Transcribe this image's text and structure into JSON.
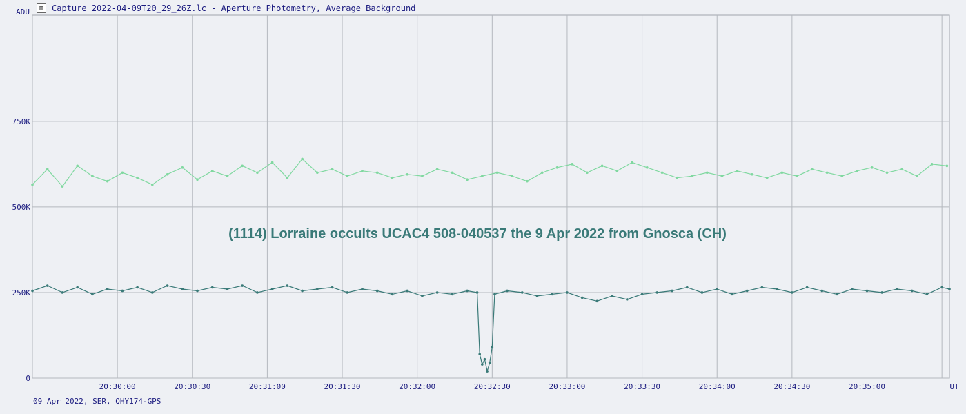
{
  "window": {
    "title": "Capture 2022-04-09T20_29_26Z.lc - Aperture Photometry, Average Background",
    "icon": "chart-icon"
  },
  "footer": {
    "text": "09 Apr 2022, SER, QHY174-GPS"
  },
  "chart_data": {
    "type": "line",
    "title": "(1114) Lorraine occults UCAC4 508-040537 the 9 Apr 2022 from Gnosca (CH)",
    "ylabel": "ADU",
    "xlabel": "UT",
    "ylim": [
      0,
      1060000
    ],
    "xlim": [
      "20:29:26",
      "20:35:33"
    ],
    "grid": true,
    "y_ticks": [
      {
        "value": 0,
        "label": "0"
      },
      {
        "value": 250000,
        "label": "250K"
      },
      {
        "value": 500000,
        "label": "500K"
      },
      {
        "value": 750000,
        "label": "750K"
      }
    ],
    "x_ticks": [
      {
        "value": "20:29:26",
        "label": ""
      },
      {
        "value": "20:30:00",
        "label": "20:30:00"
      },
      {
        "value": "20:30:30",
        "label": "20:30:30"
      },
      {
        "value": "20:31:00",
        "label": "20:31:00"
      },
      {
        "value": "20:31:30",
        "label": "20:31:30"
      },
      {
        "value": "20:32:00",
        "label": "20:32:00"
      },
      {
        "value": "20:32:30",
        "label": "20:32:30"
      },
      {
        "value": "20:33:00",
        "label": "20:33:00"
      },
      {
        "value": "20:33:30",
        "label": "20:33:30"
      },
      {
        "value": "20:34:00",
        "label": "20:34:00"
      },
      {
        "value": "20:34:30",
        "label": "20:34:30"
      },
      {
        "value": "20:35:00",
        "label": "20:35:00"
      },
      {
        "value": "20:35:30",
        "label": ""
      }
    ],
    "series": [
      {
        "color": "#80d8a0",
        "values_note": "",
        "points": [
          [
            "20:29:26",
            565000
          ],
          [
            "20:29:32",
            610000
          ],
          [
            "20:29:38",
            560000
          ],
          [
            "20:29:44",
            620000
          ],
          [
            "20:29:50",
            590000
          ],
          [
            "20:29:56",
            575000
          ],
          [
            "20:30:02",
            600000
          ],
          [
            "20:30:08",
            585000
          ],
          [
            "20:30:14",
            565000
          ],
          [
            "20:30:20",
            595000
          ],
          [
            "20:30:26",
            615000
          ],
          [
            "20:30:32",
            580000
          ],
          [
            "20:30:38",
            605000
          ],
          [
            "20:30:44",
            590000
          ],
          [
            "20:30:50",
            620000
          ],
          [
            "20:30:56",
            600000
          ],
          [
            "20:31:02",
            630000
          ],
          [
            "20:31:08",
            585000
          ],
          [
            "20:31:14",
            640000
          ],
          [
            "20:31:20",
            600000
          ],
          [
            "20:31:26",
            610000
          ],
          [
            "20:31:32",
            590000
          ],
          [
            "20:31:38",
            605000
          ],
          [
            "20:31:44",
            600000
          ],
          [
            "20:31:50",
            585000
          ],
          [
            "20:31:56",
            595000
          ],
          [
            "20:32:02",
            590000
          ],
          [
            "20:32:08",
            610000
          ],
          [
            "20:32:14",
            600000
          ],
          [
            "20:32:20",
            580000
          ],
          [
            "20:32:26",
            590000
          ],
          [
            "20:32:32",
            600000
          ],
          [
            "20:32:38",
            590000
          ],
          [
            "20:32:44",
            575000
          ],
          [
            "20:32:50",
            600000
          ],
          [
            "20:32:56",
            615000
          ],
          [
            "20:33:02",
            625000
          ],
          [
            "20:33:08",
            600000
          ],
          [
            "20:33:14",
            620000
          ],
          [
            "20:33:20",
            605000
          ],
          [
            "20:33:26",
            630000
          ],
          [
            "20:33:32",
            615000
          ],
          [
            "20:33:38",
            600000
          ],
          [
            "20:33:44",
            585000
          ],
          [
            "20:33:50",
            590000
          ],
          [
            "20:33:56",
            600000
          ],
          [
            "20:34:02",
            590000
          ],
          [
            "20:34:08",
            605000
          ],
          [
            "20:34:14",
            595000
          ],
          [
            "20:34:20",
            585000
          ],
          [
            "20:34:26",
            600000
          ],
          [
            "20:34:32",
            590000
          ],
          [
            "20:34:38",
            610000
          ],
          [
            "20:34:44",
            600000
          ],
          [
            "20:34:50",
            590000
          ],
          [
            "20:34:56",
            605000
          ],
          [
            "20:35:02",
            615000
          ],
          [
            "20:35:08",
            600000
          ],
          [
            "20:35:14",
            610000
          ],
          [
            "20:35:20",
            590000
          ],
          [
            "20:35:26",
            625000
          ],
          [
            "20:35:32",
            620000
          ]
        ]
      },
      {
        "color": "#3a7a78",
        "points": [
          [
            "20:29:26",
            255000
          ],
          [
            "20:29:32",
            270000
          ],
          [
            "20:29:38",
            250000
          ],
          [
            "20:29:44",
            265000
          ],
          [
            "20:29:50",
            245000
          ],
          [
            "20:29:56",
            260000
          ],
          [
            "20:30:02",
            255000
          ],
          [
            "20:30:08",
            265000
          ],
          [
            "20:30:14",
            250000
          ],
          [
            "20:30:20",
            270000
          ],
          [
            "20:30:26",
            260000
          ],
          [
            "20:30:32",
            255000
          ],
          [
            "20:30:38",
            265000
          ],
          [
            "20:30:44",
            260000
          ],
          [
            "20:30:50",
            270000
          ],
          [
            "20:30:56",
            250000
          ],
          [
            "20:31:02",
            260000
          ],
          [
            "20:31:08",
            270000
          ],
          [
            "20:31:14",
            255000
          ],
          [
            "20:31:20",
            260000
          ],
          [
            "20:31:26",
            265000
          ],
          [
            "20:31:32",
            250000
          ],
          [
            "20:31:38",
            260000
          ],
          [
            "20:31:44",
            255000
          ],
          [
            "20:31:50",
            245000
          ],
          [
            "20:31:56",
            255000
          ],
          [
            "20:32:02",
            240000
          ],
          [
            "20:32:08",
            250000
          ],
          [
            "20:32:14",
            245000
          ],
          [
            "20:32:20",
            255000
          ],
          [
            "20:32:24",
            250000
          ],
          [
            "20:32:25",
            70000
          ],
          [
            "20:32:26",
            40000
          ],
          [
            "20:32:27",
            55000
          ],
          [
            "20:32:28",
            20000
          ],
          [
            "20:32:29",
            45000
          ],
          [
            "20:32:30",
            90000
          ],
          [
            "20:32:31",
            245000
          ],
          [
            "20:32:36",
            255000
          ],
          [
            "20:32:42",
            250000
          ],
          [
            "20:32:48",
            240000
          ],
          [
            "20:32:54",
            245000
          ],
          [
            "20:33:00",
            250000
          ],
          [
            "20:33:06",
            235000
          ],
          [
            "20:33:12",
            225000
          ],
          [
            "20:33:18",
            240000
          ],
          [
            "20:33:24",
            230000
          ],
          [
            "20:33:30",
            245000
          ],
          [
            "20:33:36",
            250000
          ],
          [
            "20:33:42",
            255000
          ],
          [
            "20:33:48",
            265000
          ],
          [
            "20:33:54",
            250000
          ],
          [
            "20:34:00",
            260000
          ],
          [
            "20:34:06",
            245000
          ],
          [
            "20:34:12",
            255000
          ],
          [
            "20:34:18",
            265000
          ],
          [
            "20:34:24",
            260000
          ],
          [
            "20:34:30",
            250000
          ],
          [
            "20:34:36",
            265000
          ],
          [
            "20:34:42",
            255000
          ],
          [
            "20:34:48",
            245000
          ],
          [
            "20:34:54",
            260000
          ],
          [
            "20:35:00",
            255000
          ],
          [
            "20:35:06",
            250000
          ],
          [
            "20:35:12",
            260000
          ],
          [
            "20:35:18",
            255000
          ],
          [
            "20:35:24",
            245000
          ],
          [
            "20:35:30",
            265000
          ],
          [
            "20:35:33",
            260000
          ]
        ]
      }
    ]
  }
}
